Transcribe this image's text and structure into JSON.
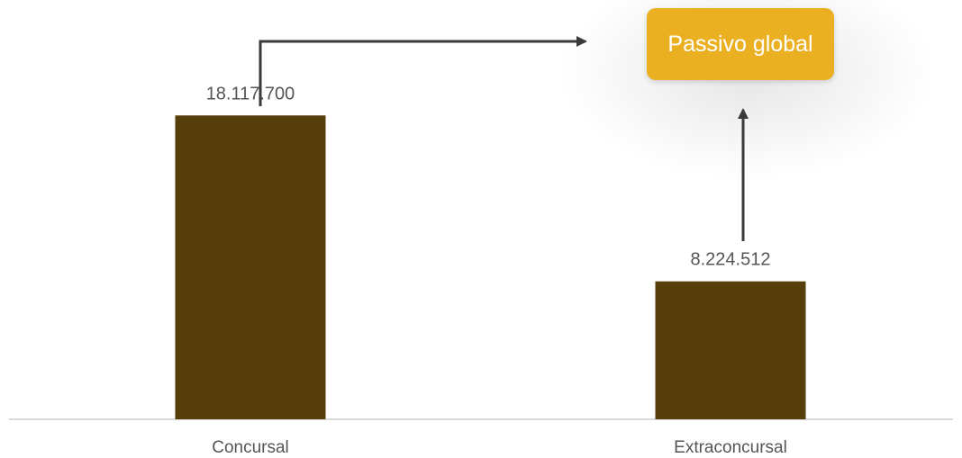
{
  "chart_data": {
    "type": "bar",
    "categories": [
      "Concursal",
      "Extraconcursal"
    ],
    "values": [
      18117700,
      8224512
    ],
    "value_labels": [
      "18.117.700",
      "8.224.512"
    ],
    "title": "",
    "xlabel": "",
    "ylabel": "",
    "ylim": [
      0,
      25000000
    ],
    "grid": false,
    "legend": "none",
    "annotation": {
      "label": "Passivo global"
    }
  },
  "colors": {
    "bar": "#563F0B",
    "annotation_box": "#EBB022",
    "arrow": "#3A3A3A",
    "axis": "#D9D9D9",
    "label_text": "#555555"
  },
  "icons": [
    "arrow-right-icon",
    "arrow-up-icon"
  ]
}
